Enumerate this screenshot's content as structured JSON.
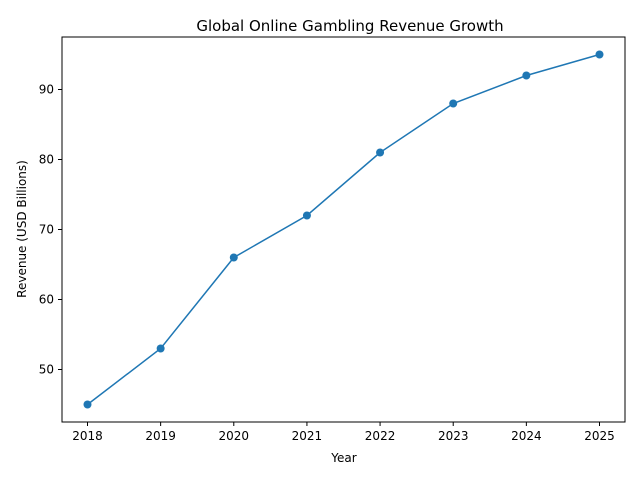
{
  "chart_data": {
    "type": "line",
    "title": "Global Online Gambling Revenue Growth",
    "xlabel": "Year",
    "ylabel": "Revenue (USD Billions)",
    "x": [
      "2018",
      "2019",
      "2020",
      "2021",
      "2022",
      "2023",
      "2024",
      "2025"
    ],
    "series": [
      {
        "values": [
          45,
          53,
          66,
          72,
          81,
          88,
          92,
          95
        ]
      }
    ],
    "yticks": [
      50,
      60,
      70,
      80,
      90
    ],
    "ylim": [
      42.5,
      97.5
    ],
    "grid": false,
    "legend": "none",
    "colors": {
      "line": "#1f77b4",
      "marker": "#1f77b4",
      "axis": "#000000"
    }
  }
}
